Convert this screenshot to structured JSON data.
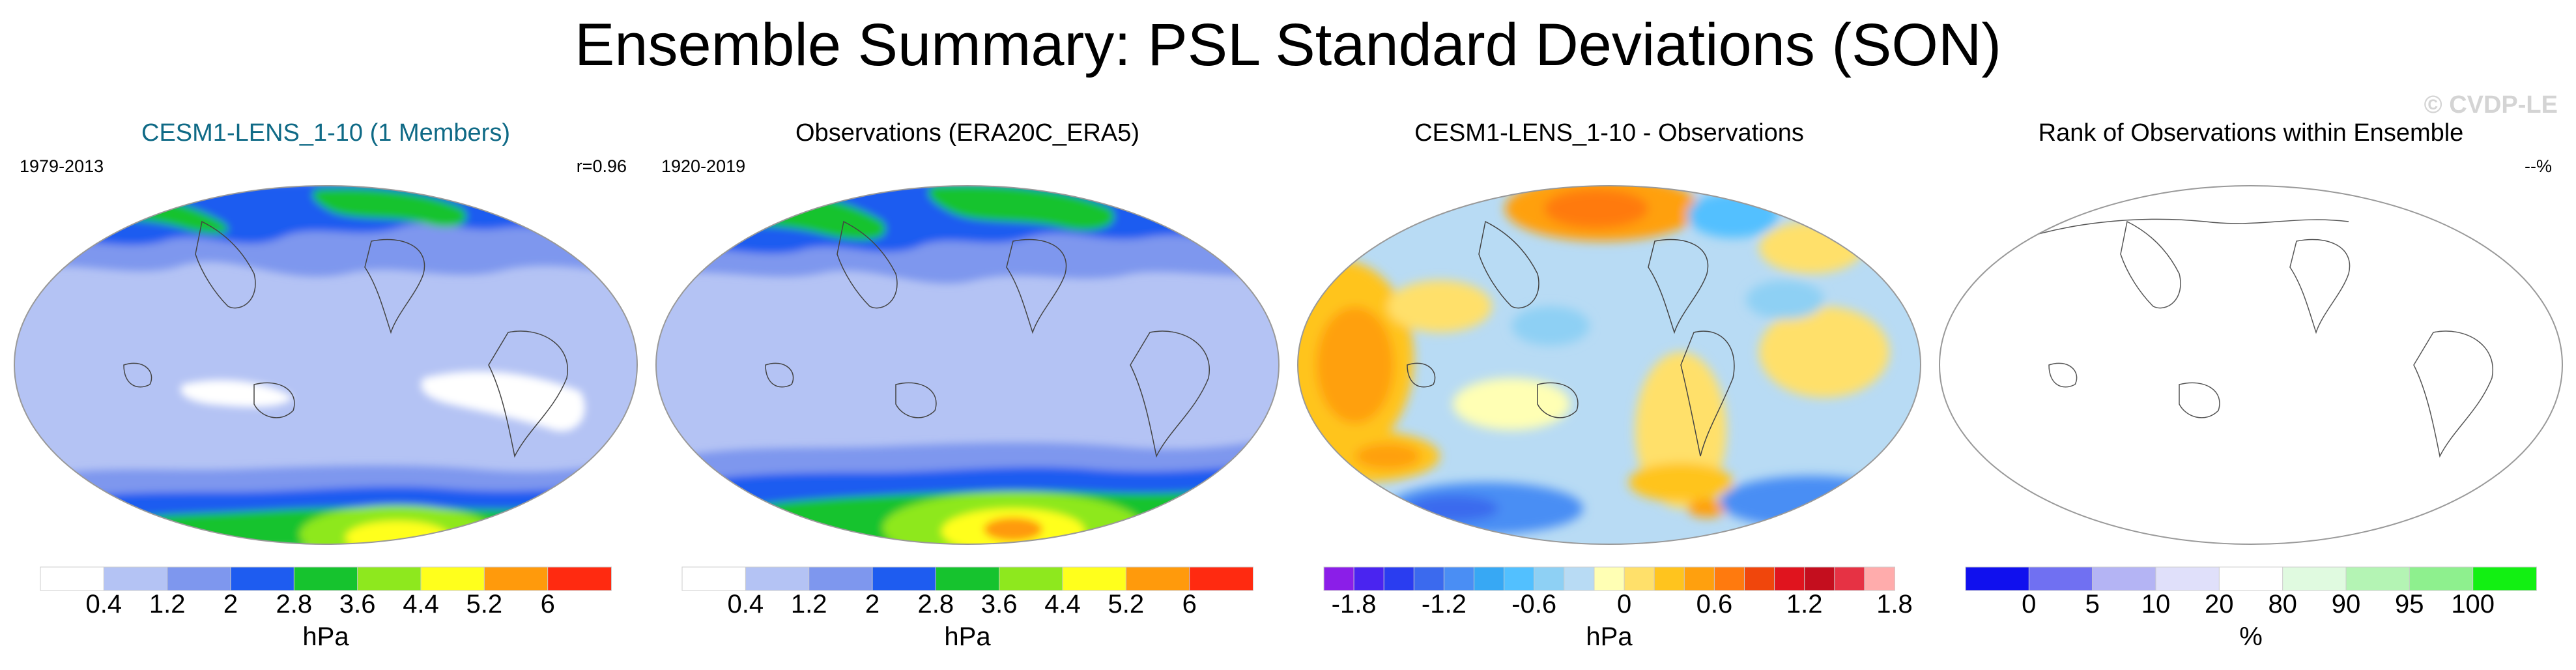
{
  "title": "Ensemble Summary: PSL Standard Deviations (SON)",
  "watermark": "© CVDP-LE",
  "colors": {
    "std": [
      "#ffffff",
      "#b4c3f4",
      "#7e97ee",
      "#1e5cf0",
      "#16c32e",
      "#8ee81e",
      "#ffff1c",
      "#ff9a0c",
      "#ff2a10"
    ],
    "diff": [
      "#8b1ee8",
      "#4a24f0",
      "#2a3df0",
      "#3b6aee",
      "#4a8ef4",
      "#37a8f4",
      "#52c0ff",
      "#8ed0f4",
      "#b8dbf4",
      "#ffffb4",
      "#ffe06a",
      "#ffc41e",
      "#ffa00e",
      "#ff7a0e",
      "#f0460c",
      "#e0141e",
      "#c40e1e",
      "#e63244",
      "#ffacac"
    ],
    "rank": [
      "#1010ee",
      "#7070f2",
      "#b4b4f4",
      "#e0e0fa",
      "#ffffff",
      "#e0fae0",
      "#b4f4b4",
      "#8ef08e",
      "#12f012"
    ]
  },
  "panels": [
    {
      "title": "CESM1-LENS_1-10 (1 Members)",
      "left_note": "1979-2013",
      "right_note": "r=0.96",
      "colorbar": {
        "ticks": [
          "0.4",
          "1.2",
          "2",
          "2.8",
          "3.6",
          "4.4",
          "5.2",
          "6"
        ],
        "unit": "hPa"
      }
    },
    {
      "title": "Observations (ERA20C_ERA5)",
      "left_note": "1920-2019",
      "right_note": "",
      "colorbar": {
        "ticks": [
          "0.4",
          "1.2",
          "2",
          "2.8",
          "3.6",
          "4.4",
          "5.2",
          "6"
        ],
        "unit": "hPa"
      }
    },
    {
      "title": "CESM1-LENS_1-10 - Observations",
      "left_note": "",
      "right_note": "",
      "colorbar": {
        "ticks": [
          "-1.8",
          "-1.2",
          "-0.6",
          "0",
          "0.6",
          "1.2",
          "1.8"
        ],
        "unit": "hPa"
      }
    },
    {
      "title": "Rank of Observations within Ensemble",
      "left_note": "",
      "right_note": "--%",
      "colorbar": {
        "ticks": [
          "0",
          "5",
          "10",
          "20",
          "80",
          "90",
          "95",
          "100"
        ],
        "unit": "%"
      }
    }
  ]
}
